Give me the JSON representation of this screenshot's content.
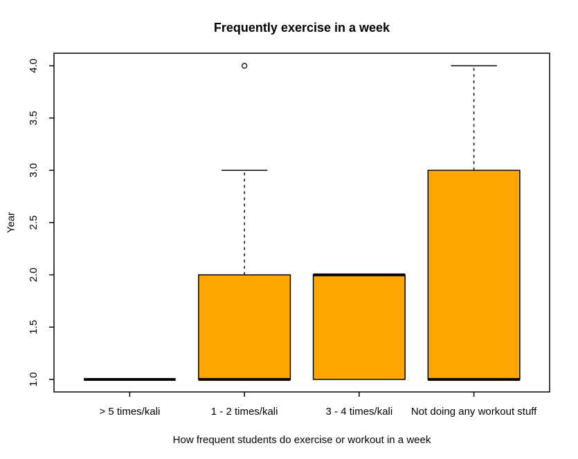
{
  "chart_data": {
    "type": "boxplot",
    "title": "Frequently exercise in a week",
    "xlabel": "How frequent students do exercise or workout in a week",
    "ylabel": "Year",
    "ylim": [
      1.0,
      4.0
    ],
    "yticks": [
      "1.0",
      "1.5",
      "2.0",
      "2.5",
      "3.0",
      "3.5",
      "4.0"
    ],
    "grid": false,
    "legend": null,
    "categories": [
      "> 5 times/kali",
      "1 - 2 times/kali",
      "3 - 4 times/kali",
      "Not doing any workout stuff"
    ],
    "boxes": [
      {
        "category": "> 5 times/kali",
        "whisker_low": 1,
        "q1": 1,
        "median": 1,
        "q3": 1,
        "whisker_high": 1,
        "outliers": []
      },
      {
        "category": "1 - 2 times/kali",
        "whisker_low": 1,
        "q1": 1,
        "median": 1,
        "q3": 2,
        "whisker_high": 3,
        "outliers": [
          4
        ]
      },
      {
        "category": "3 - 4 times/kali",
        "whisker_low": 1,
        "q1": 1,
        "median": 2,
        "q3": 2,
        "whisker_high": 2,
        "outliers": []
      },
      {
        "category": "Not doing any workout stuff",
        "whisker_low": 1,
        "q1": 1,
        "median": 1,
        "q3": 3,
        "whisker_high": 4,
        "outliers": []
      }
    ],
    "colors": {
      "box_fill": "#FFA500",
      "stroke": "#000000",
      "background": "#FFFFFF"
    }
  }
}
